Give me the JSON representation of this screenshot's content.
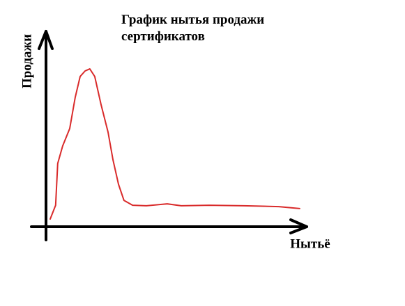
{
  "chart_data": {
    "type": "line",
    "title": "График нытья продажи сертификатов",
    "x_label": "Нытьё",
    "y_label": "Продажи",
    "x": [
      1.6,
      3.7,
      4.5,
      6.4,
      9.1,
      11.2,
      13.1,
      15.0,
      16.8,
      18.7,
      21.1,
      23.8,
      25.7,
      27.8,
      29.9,
      33.2,
      38.5,
      46.5,
      51.9,
      62.6,
      75.9,
      89.3,
      97.3
    ],
    "values": [
      3.9,
      11.0,
      32.4,
      41.3,
      50.2,
      66.2,
      76.9,
      79.7,
      80.8,
      76.9,
      62.6,
      48.4,
      34.2,
      21.7,
      13.5,
      11.0,
      10.7,
      11.7,
      10.7,
      11.0,
      10.7,
      10.3,
      9.3
    ],
    "color": "#d92b2b",
    "xlim": [
      0,
      100
    ],
    "ylim": [
      0,
      100
    ]
  }
}
